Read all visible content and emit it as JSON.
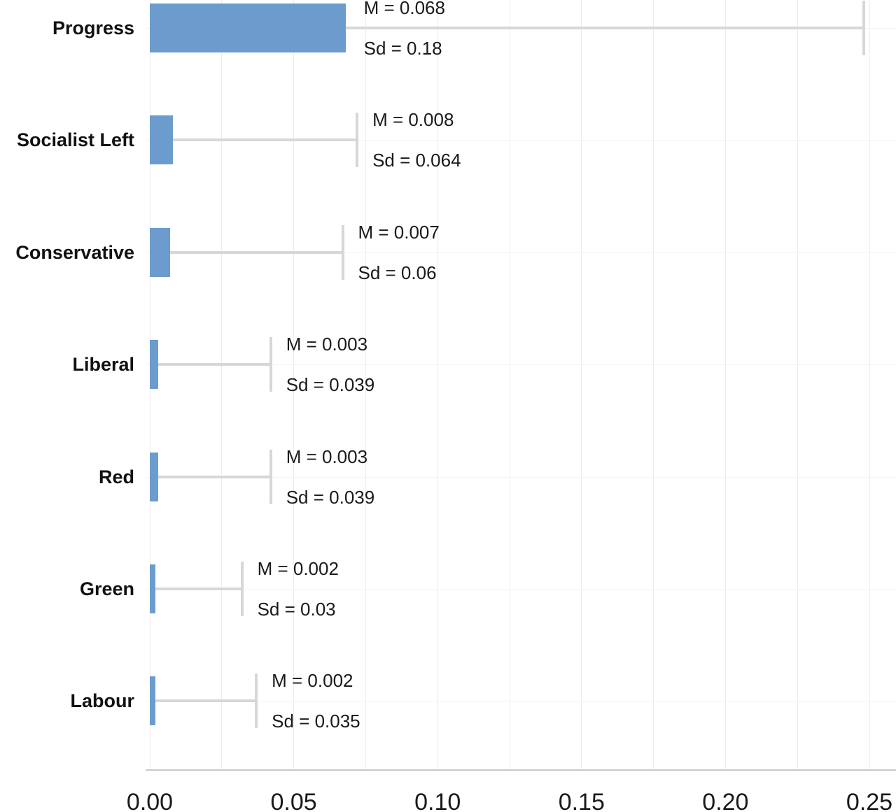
{
  "chart_data": {
    "type": "bar",
    "orientation": "horizontal",
    "title": "",
    "xlabel": "",
    "ylabel": "",
    "categories": [
      "Progress",
      "Socialist Left",
      "Conservative",
      "Liberal",
      "Red",
      "Green",
      "Labour"
    ],
    "series": [
      {
        "name": "Mean",
        "values": [
          0.068,
          0.008,
          0.007,
          0.003,
          0.003,
          0.002,
          0.002
        ]
      },
      {
        "name": "Sd",
        "values": [
          0.18,
          0.064,
          0.06,
          0.039,
          0.039,
          0.03,
          0.035
        ]
      }
    ],
    "annotations": [
      {
        "mean_label": "M = 0.068",
        "sd_label": "Sd = 0.18"
      },
      {
        "mean_label": "M = 0.008",
        "sd_label": "Sd = 0.064"
      },
      {
        "mean_label": "M = 0.007",
        "sd_label": "Sd = 0.06"
      },
      {
        "mean_label": "M = 0.003",
        "sd_label": "Sd = 0.039"
      },
      {
        "mean_label": "M = 0.003",
        "sd_label": "Sd = 0.039"
      },
      {
        "mean_label": "M = 0.002",
        "sd_label": "Sd = 0.03"
      },
      {
        "mean_label": "M = 0.002",
        "sd_label": "Sd = 0.035"
      }
    ],
    "x_axis": {
      "tick_labels": [
        "0.00",
        "0.05",
        "0.10",
        "0.15",
        "0.20",
        "0.25"
      ],
      "tick_values": [
        0,
        0.05,
        0.1,
        0.15,
        0.2,
        0.25
      ],
      "minor_grid_step": 0.025,
      "xlim": [
        0,
        0.259
      ]
    },
    "error_bars": {
      "type": "one-sided",
      "direction": "right",
      "cap": true
    },
    "legend": {
      "visible": false
    },
    "grid": {
      "vertical": true,
      "horizontal": true
    },
    "colors": {
      "bar_fill": "#6C9CCD",
      "error_bar": "#D7D7D7",
      "axis_line": "#C9C9C9",
      "grid_vertical": "#ECECEC",
      "grid_horizontal": "#F4F4F4",
      "text": "#1A1A1A"
    }
  }
}
